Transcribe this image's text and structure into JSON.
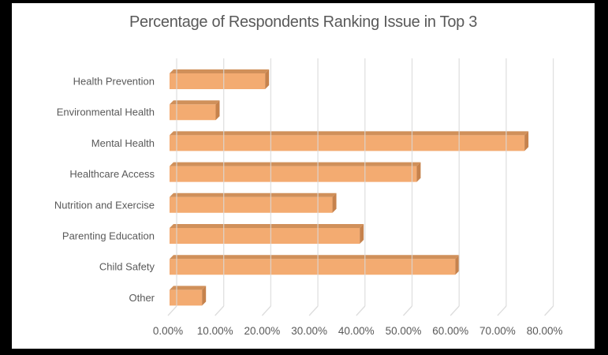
{
  "chart_data": {
    "type": "bar",
    "orientation": "horizontal",
    "style": "3d-bevel",
    "title": "Percentage of Respondents Ranking Issue in Top 3",
    "categories": [
      "Health Prevention",
      "Environmental Health",
      "Mental Health",
      "Healthcare Access",
      "Nutrition and Exercise",
      "Parenting Education",
      "Child Safety",
      "Other"
    ],
    "values": [
      20.3,
      9.8,
      75.4,
      52.5,
      34.6,
      40.4,
      60.7,
      6.9
    ],
    "unit": "%",
    "xlim": [
      0,
      80
    ],
    "x_tick_step": 10,
    "x_tick_labels": [
      "0.00%",
      "10.00%",
      "20.00%",
      "30.00%",
      "40.00%",
      "50.00%",
      "60.00%",
      "70.00%",
      "80.00%"
    ],
    "grid": true,
    "legend": "none",
    "colors": {
      "bar_front": "#F3AB71",
      "bar_top": "#D0905A",
      "bar_side": "#C6824C",
      "gridline": "#D9D9D9",
      "text": "#595959",
      "background": "#FFFFFF",
      "frame": "#000000"
    }
  }
}
